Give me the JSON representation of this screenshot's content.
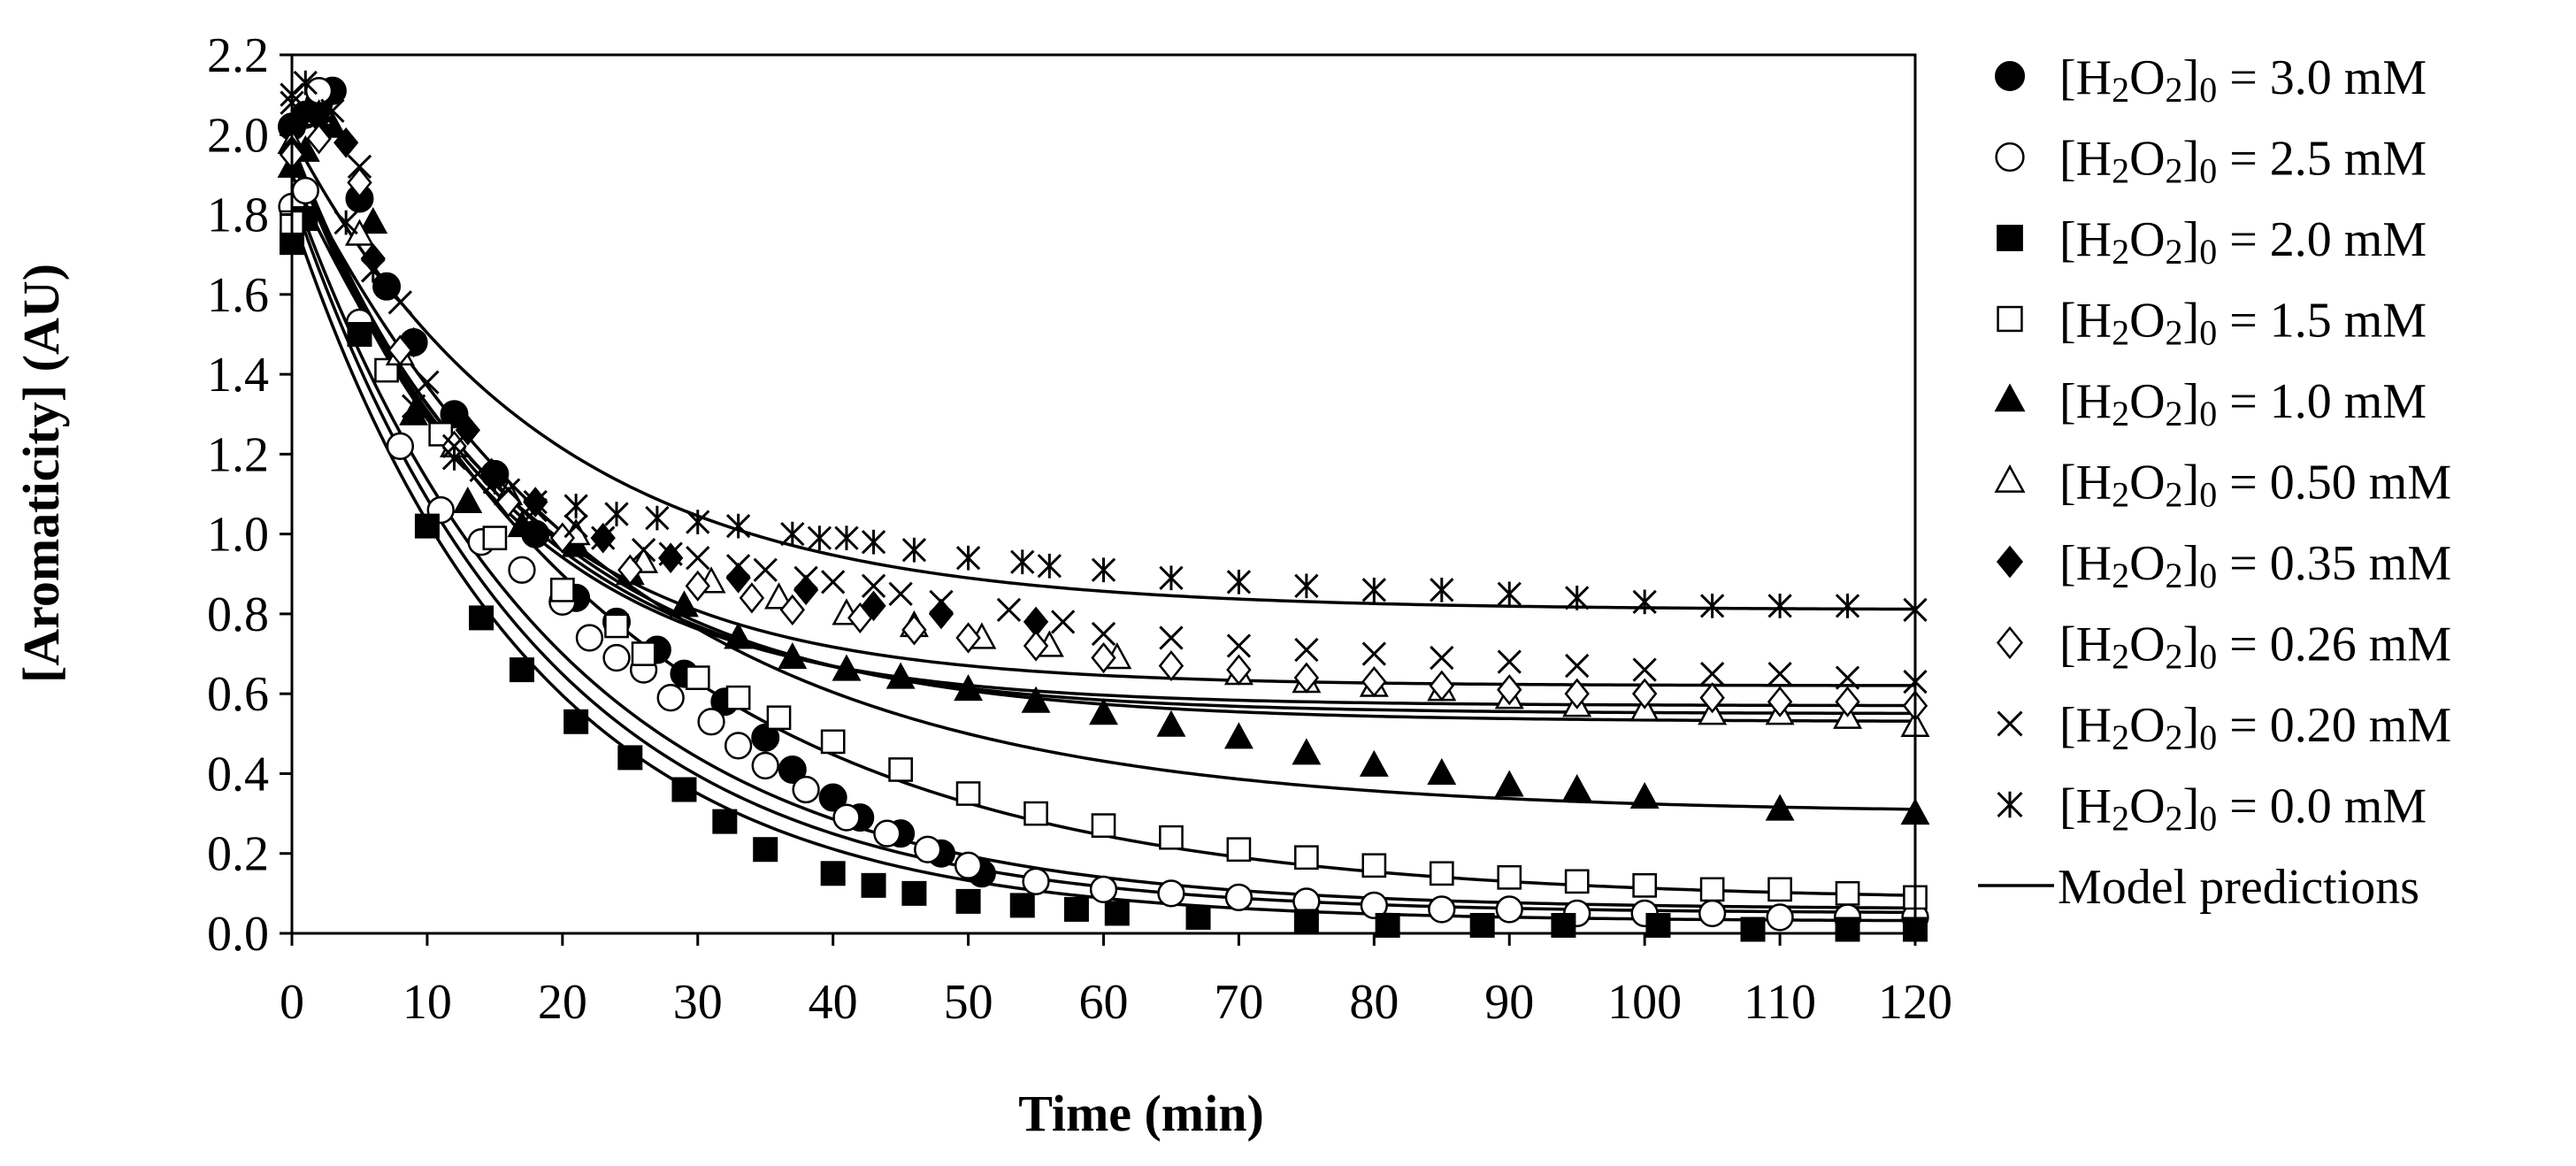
{
  "chart_data": {
    "type": "scatter",
    "title": "",
    "xlabel": "Time (min)",
    "ylabel": "[Aromaticity] (AU)",
    "xlim": [
      0,
      120
    ],
    "ylim": [
      0,
      2.2
    ],
    "xticks": [
      0,
      10,
      20,
      30,
      40,
      50,
      60,
      70,
      80,
      90,
      100,
      110,
      120
    ],
    "yticks": [
      "0.0",
      "0.2",
      "0.4",
      "0.6",
      "0.8",
      "1.0",
      "1.2",
      "1.4",
      "1.6",
      "1.8",
      "2.0",
      "2.2"
    ],
    "legend_position": "right",
    "series": [
      {
        "name": "3.0",
        "label_suffix": " = 3.0 mM",
        "marker": "circle-filled",
        "x": [
          0,
          1,
          2,
          3,
          5,
          7,
          9,
          12,
          15,
          18,
          21,
          24,
          27,
          29,
          32,
          35,
          37,
          40,
          42,
          45,
          48,
          51
        ],
        "y": [
          2.02,
          2.05,
          2.08,
          2.11,
          1.84,
          1.62,
          1.48,
          1.3,
          1.15,
          1.0,
          0.84,
          0.78,
          0.71,
          0.65,
          0.58,
          0.49,
          0.41,
          0.34,
          0.29,
          0.25,
          0.2,
          0.15
        ]
      },
      {
        "name": "2.5",
        "label_suffix": " = 2.5 mM",
        "marker": "circle-open",
        "x": [
          0,
          1,
          2,
          5,
          8,
          11,
          14,
          17,
          20,
          22,
          24,
          26,
          28,
          31,
          33,
          35,
          38,
          41,
          44,
          47,
          50,
          55,
          60,
          65,
          70,
          75,
          80,
          85,
          90,
          95,
          100,
          105,
          110,
          115,
          120
        ],
        "y": [
          1.82,
          1.86,
          2.11,
          1.53,
          1.22,
          1.06,
          0.98,
          0.91,
          0.83,
          0.74,
          0.69,
          0.66,
          0.59,
          0.53,
          0.47,
          0.42,
          0.36,
          0.29,
          0.25,
          0.21,
          0.17,
          0.13,
          0.11,
          0.1,
          0.09,
          0.08,
          0.07,
          0.06,
          0.06,
          0.05,
          0.05,
          0.05,
          0.04,
          0.04,
          0.04
        ]
      },
      {
        "name": "2.0",
        "label_suffix": " = 2.0 mM",
        "marker": "square-filled",
        "x": [
          0,
          1,
          5,
          10,
          14,
          17,
          21,
          25,
          29,
          32,
          35,
          40,
          43,
          46,
          50,
          54,
          58,
          61,
          67,
          75,
          81,
          88,
          94,
          101,
          108,
          115,
          120
        ],
        "y": [
          1.73,
          1.79,
          1.5,
          1.02,
          0.79,
          0.66,
          0.53,
          0.44,
          0.36,
          0.28,
          0.21,
          0.15,
          0.12,
          0.1,
          0.08,
          0.07,
          0.06,
          0.05,
          0.04,
          0.03,
          0.02,
          0.02,
          0.02,
          0.02,
          0.01,
          0.01,
          0.01
        ]
      },
      {
        "name": "1.5",
        "label_suffix": " = 1.5 mM",
        "marker": "square-open",
        "x": [
          0,
          7,
          11,
          15,
          20,
          24,
          26,
          30,
          33,
          36,
          40,
          45,
          50,
          55,
          60,
          65,
          70,
          75,
          80,
          85,
          90,
          95,
          100,
          105,
          110,
          115,
          120
        ],
        "y": [
          1.78,
          1.41,
          1.25,
          0.99,
          0.86,
          0.77,
          0.7,
          0.64,
          0.59,
          0.54,
          0.48,
          0.41,
          0.35,
          0.3,
          0.27,
          0.24,
          0.21,
          0.19,
          0.17,
          0.15,
          0.14,
          0.13,
          0.12,
          0.11,
          0.11,
          0.1,
          0.09
        ]
      },
      {
        "name": "1.0",
        "label_suffix": " = 1.0 mM",
        "marker": "triangle-filled",
        "x": [
          0,
          1,
          3,
          6,
          9,
          13,
          17,
          21,
          25,
          29,
          33,
          37,
          41,
          45,
          50,
          55,
          60,
          65,
          70,
          75,
          80,
          85,
          90,
          95,
          100,
          110,
          120
        ],
        "y": [
          1.92,
          1.96,
          2.02,
          1.78,
          1.3,
          1.08,
          1.02,
          0.97,
          0.9,
          0.82,
          0.74,
          0.69,
          0.66,
          0.64,
          0.61,
          0.58,
          0.55,
          0.52,
          0.49,
          0.45,
          0.42,
          0.4,
          0.37,
          0.36,
          0.34,
          0.31,
          0.3
        ]
      },
      {
        "name": "0.50",
        "label_suffix": " = 0.50 mM",
        "marker": "triangle-open",
        "x": [
          0,
          2,
          5,
          8,
          12,
          16,
          21,
          26,
          31,
          36,
          41,
          46,
          51,
          56,
          61,
          70,
          75,
          80,
          85,
          90,
          95,
          100,
          105,
          110,
          115,
          120
        ],
        "y": [
          1.98,
          2.05,
          1.75,
          1.45,
          1.22,
          1.1,
          1.0,
          0.93,
          0.88,
          0.84,
          0.8,
          0.77,
          0.74,
          0.72,
          0.69,
          0.65,
          0.63,
          0.62,
          0.61,
          0.59,
          0.57,
          0.56,
          0.55,
          0.55,
          0.54,
          0.52
        ]
      },
      {
        "name": "0.35",
        "label_suffix": " = 0.35 mM",
        "marker": "diamond-filled",
        "x": [
          0,
          2,
          4,
          6,
          9,
          13,
          18,
          23,
          28,
          33,
          38,
          43,
          48,
          55
        ],
        "y": [
          1.96,
          2.04,
          1.98,
          1.69,
          1.48,
          1.26,
          1.08,
          0.99,
          0.94,
          0.89,
          0.86,
          0.82,
          0.8,
          0.78
        ]
      },
      {
        "name": "0.26",
        "label_suffix": " = 0.26 mM",
        "marker": "diamond-open",
        "x": [
          0,
          2,
          5,
          8,
          12,
          16,
          20,
          25,
          30,
          34,
          37,
          42,
          46,
          50,
          55,
          60,
          65,
          70,
          75,
          80,
          85,
          90,
          95,
          100,
          105,
          110,
          115,
          120
        ],
        "y": [
          1.95,
          1.99,
          1.88,
          1.46,
          1.22,
          1.08,
          0.99,
          0.91,
          0.87,
          0.84,
          0.81,
          0.79,
          0.76,
          0.74,
          0.72,
          0.69,
          0.67,
          0.66,
          0.64,
          0.63,
          0.62,
          0.61,
          0.6,
          0.6,
          0.59,
          0.58,
          0.58,
          0.57
        ]
      },
      {
        "name": "0.20",
        "label_suffix": " = 0.20 mM",
        "marker": "x",
        "x": [
          0,
          3,
          5,
          6,
          8,
          10,
          12,
          14,
          16,
          18,
          21,
          23,
          26,
          28,
          30,
          33,
          35,
          38,
          40,
          43,
          45,
          48,
          53,
          57,
          60,
          65,
          70,
          75,
          80,
          85,
          90,
          95,
          100,
          105,
          110,
          115,
          120
        ],
        "y": [
          2.08,
          2.06,
          1.92,
          1.66,
          1.58,
          1.38,
          1.22,
          1.16,
          1.11,
          1.06,
          1.02,
          0.99,
          0.96,
          0.95,
          0.94,
          0.92,
          0.91,
          0.89,
          0.88,
          0.87,
          0.85,
          0.83,
          0.81,
          0.78,
          0.75,
          0.74,
          0.72,
          0.71,
          0.7,
          0.69,
          0.68,
          0.67,
          0.66,
          0.65,
          0.65,
          0.64,
          0.63
        ]
      },
      {
        "name": "0.0",
        "label_suffix": " = 0.0 mM",
        "marker": "asterisk",
        "x": [
          0,
          1,
          4,
          6,
          9,
          12,
          15,
          18,
          21,
          24,
          27,
          30,
          33,
          37,
          39,
          41,
          43,
          46,
          50,
          54,
          56,
          60,
          65,
          70,
          75,
          80,
          85,
          90,
          95,
          100,
          105,
          110,
          115,
          120
        ],
        "y": [
          2.1,
          2.13,
          1.78,
          1.66,
          1.32,
          1.19,
          1.13,
          1.08,
          1.07,
          1.05,
          1.04,
          1.03,
          1.02,
          1.0,
          0.99,
          0.99,
          0.98,
          0.96,
          0.94,
          0.93,
          0.92,
          0.91,
          0.89,
          0.88,
          0.87,
          0.86,
          0.86,
          0.85,
          0.84,
          0.83,
          0.82,
          0.82,
          0.82,
          0.81
        ]
      }
    ],
    "model_predictions": {
      "label": "Model predictions",
      "curves": [
        {
          "y0": 1.8,
          "yinf": 0.03,
          "k": 0.057
        },
        {
          "y0": 1.85,
          "yinf": 0.05,
          "k": 0.055
        },
        {
          "y0": 1.87,
          "yinf": 0.06,
          "k": 0.052
        },
        {
          "y0": 1.9,
          "yinf": 0.08,
          "k": 0.04
        },
        {
          "y0": 1.93,
          "yinf": 0.3,
          "k": 0.042
        },
        {
          "y0": 1.95,
          "yinf": 0.53,
          "k": 0.058
        },
        {
          "y0": 1.96,
          "yinf": 0.55,
          "k": 0.062
        },
        {
          "y0": 1.96,
          "yinf": 0.57,
          "k": 0.066
        },
        {
          "y0": 1.98,
          "yinf": 0.62,
          "k": 0.066
        },
        {
          "y0": 2.0,
          "yinf": 0.81,
          "k": 0.054
        }
      ]
    },
    "legend": {
      "species": "H2O2",
      "subscript_after_H": "2",
      "subscript_after_O": "2",
      "subscript_bracket": "0"
    }
  }
}
